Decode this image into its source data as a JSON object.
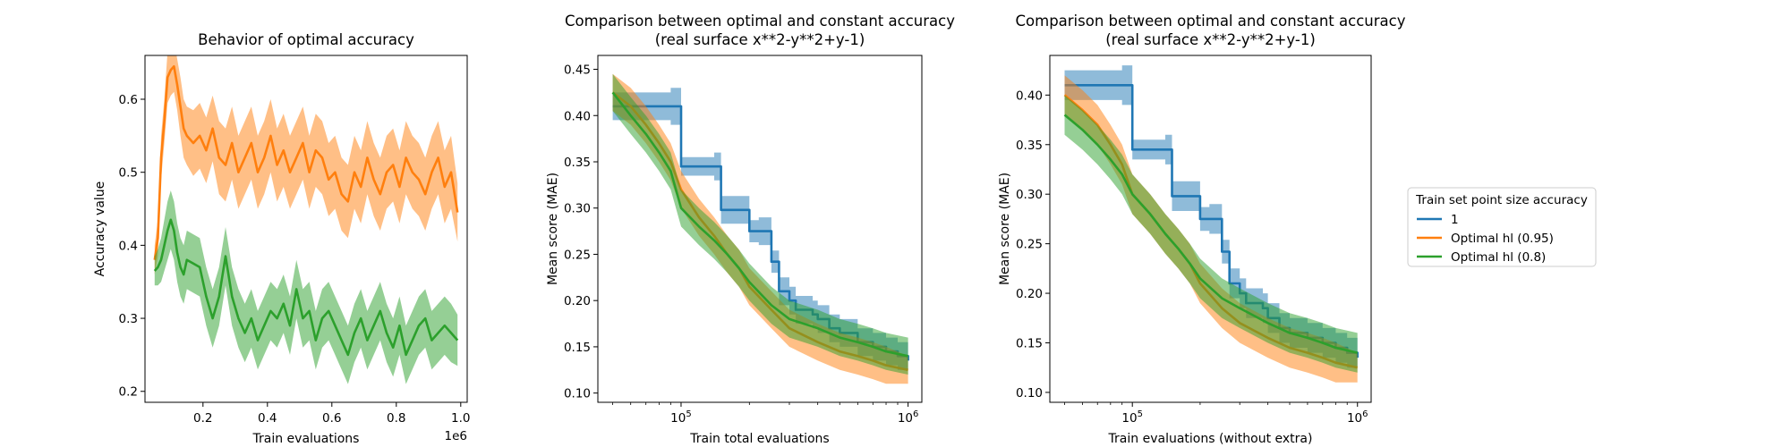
{
  "colors": {
    "blue": "#1f77b4",
    "orange": "#ff7f0e",
    "green": "#2ca02c"
  },
  "legend": {
    "title": "Train set point size accuracy",
    "entries": [
      {
        "label": "1",
        "color": "#1f77b4"
      },
      {
        "label": "Optimal hl (0.95)",
        "color": "#ff7f0e"
      },
      {
        "label": "Optimal hl (0.8)",
        "color": "#2ca02c"
      }
    ]
  },
  "chart_data": [
    {
      "type": "line",
      "title": "Behavior of optimal accuracy",
      "subtitle": "",
      "xlabel": "Train evaluations",
      "ylabel": "Accuracy value",
      "x_offset_text": "1e6",
      "xscale": "linear",
      "xlim": [
        0.02,
        1.02
      ],
      "ylim": [
        0.185,
        0.66
      ],
      "xticks": [
        0.2,
        0.4,
        0.6,
        0.8,
        1.0
      ],
      "xtick_labels": [
        "0.2",
        "0.4",
        "0.6",
        "0.8",
        "1.0"
      ],
      "yticks": [
        0.2,
        0.3,
        0.4,
        0.5,
        0.6
      ],
      "ytick_labels": [
        "0.2",
        "0.3",
        "0.4",
        "0.5",
        "0.6"
      ],
      "grid": false,
      "band_units": "absolute",
      "series": [
        {
          "color": "#ff7f0e",
          "x": [
            0.05,
            0.06,
            0.07,
            0.08,
            0.09,
            0.1,
            0.11,
            0.12,
            0.13,
            0.14,
            0.15,
            0.17,
            0.19,
            0.21,
            0.23,
            0.25,
            0.27,
            0.29,
            0.31,
            0.33,
            0.35,
            0.37,
            0.39,
            0.41,
            0.43,
            0.45,
            0.47,
            0.49,
            0.51,
            0.53,
            0.55,
            0.57,
            0.59,
            0.61,
            0.63,
            0.65,
            0.67,
            0.69,
            0.71,
            0.73,
            0.75,
            0.77,
            0.79,
            0.81,
            0.83,
            0.85,
            0.87,
            0.89,
            0.91,
            0.93,
            0.95,
            0.97,
            0.99
          ],
          "y": [
            0.38,
            0.41,
            0.52,
            0.57,
            0.63,
            0.64,
            0.645,
            0.62,
            0.59,
            0.56,
            0.55,
            0.54,
            0.55,
            0.53,
            0.56,
            0.52,
            0.51,
            0.54,
            0.5,
            0.52,
            0.54,
            0.5,
            0.52,
            0.55,
            0.51,
            0.53,
            0.5,
            0.52,
            0.54,
            0.5,
            0.53,
            0.52,
            0.49,
            0.5,
            0.47,
            0.46,
            0.5,
            0.48,
            0.52,
            0.49,
            0.47,
            0.5,
            0.51,
            0.48,
            0.52,
            0.5,
            0.49,
            0.47,
            0.5,
            0.52,
            0.48,
            0.5,
            0.445
          ],
          "band": [
            0.02,
            0.025,
            0.03,
            0.03,
            0.035,
            0.035,
            0.035,
            0.035,
            0.04,
            0.04,
            0.04,
            0.045,
            0.045,
            0.045,
            0.045,
            0.05,
            0.05,
            0.05,
            0.05,
            0.05,
            0.05,
            0.05,
            0.05,
            0.05,
            0.05,
            0.05,
            0.05,
            0.05,
            0.05,
            0.05,
            0.05,
            0.05,
            0.05,
            0.05,
            0.05,
            0.05,
            0.05,
            0.05,
            0.05,
            0.05,
            0.05,
            0.05,
            0.05,
            0.05,
            0.05,
            0.05,
            0.05,
            0.05,
            0.05,
            0.05,
            0.05,
            0.05,
            0.04
          ]
        },
        {
          "color": "#2ca02c",
          "x": [
            0.05,
            0.06,
            0.07,
            0.08,
            0.09,
            0.1,
            0.11,
            0.12,
            0.13,
            0.14,
            0.15,
            0.17,
            0.19,
            0.21,
            0.23,
            0.25,
            0.27,
            0.29,
            0.31,
            0.33,
            0.35,
            0.37,
            0.39,
            0.41,
            0.43,
            0.45,
            0.47,
            0.49,
            0.51,
            0.53,
            0.55,
            0.57,
            0.59,
            0.61,
            0.63,
            0.65,
            0.67,
            0.69,
            0.71,
            0.73,
            0.75,
            0.77,
            0.79,
            0.81,
            0.83,
            0.85,
            0.87,
            0.89,
            0.91,
            0.93,
            0.95,
            0.97,
            0.99
          ],
          "y": [
            0.365,
            0.37,
            0.38,
            0.4,
            0.42,
            0.435,
            0.42,
            0.39,
            0.37,
            0.36,
            0.38,
            0.375,
            0.37,
            0.33,
            0.3,
            0.33,
            0.385,
            0.33,
            0.3,
            0.28,
            0.3,
            0.27,
            0.29,
            0.31,
            0.3,
            0.32,
            0.29,
            0.34,
            0.3,
            0.31,
            0.27,
            0.3,
            0.31,
            0.29,
            0.27,
            0.25,
            0.28,
            0.3,
            0.27,
            0.29,
            0.31,
            0.28,
            0.26,
            0.29,
            0.25,
            0.27,
            0.29,
            0.3,
            0.27,
            0.28,
            0.29,
            0.28,
            0.27
          ],
          "band": [
            0.02,
            0.025,
            0.03,
            0.035,
            0.04,
            0.04,
            0.04,
            0.04,
            0.04,
            0.04,
            0.04,
            0.04,
            0.04,
            0.04,
            0.04,
            0.04,
            0.04,
            0.04,
            0.04,
            0.04,
            0.04,
            0.04,
            0.04,
            0.04,
            0.04,
            0.04,
            0.04,
            0.04,
            0.04,
            0.04,
            0.04,
            0.04,
            0.04,
            0.04,
            0.04,
            0.04,
            0.04,
            0.04,
            0.04,
            0.04,
            0.04,
            0.04,
            0.04,
            0.04,
            0.04,
            0.04,
            0.04,
            0.04,
            0.04,
            0.04,
            0.04,
            0.04,
            0.035
          ]
        }
      ]
    },
    {
      "type": "line",
      "title": "Comparison between optimal and constant accuracy",
      "subtitle": "(real surface x**2-y**2+y-1)",
      "xlabel": "Train total evaluations",
      "ylabel": "Mean score (MAE)",
      "x_offset_text": "",
      "xscale": "log",
      "xlim": [
        43000,
        1150000
      ],
      "ylim": [
        0.09,
        0.465
      ],
      "xticks": [
        100000,
        1000000
      ],
      "xtick_labels": [
        "10^5",
        "10^6"
      ],
      "yticks": [
        0.1,
        0.15,
        0.2,
        0.25,
        0.3,
        0.35,
        0.4,
        0.45
      ],
      "ytick_labels": [
        "0.10",
        "0.15",
        "0.20",
        "0.25",
        "0.30",
        "0.35",
        "0.40",
        "0.45"
      ],
      "grid": false,
      "band_units": "absolute",
      "series": [
        {
          "color": "#1f77b4",
          "step": true,
          "x": [
            50000,
            70000,
            90000,
            100000,
            120000,
            140000,
            150000,
            180000,
            200000,
            220000,
            250000,
            270000,
            300000,
            320000,
            380000,
            400000,
            450000,
            500000,
            600000,
            700000,
            800000,
            900000,
            1000000
          ],
          "y": [
            0.41,
            0.41,
            0.41,
            0.345,
            0.345,
            0.345,
            0.298,
            0.298,
            0.275,
            0.275,
            0.242,
            0.21,
            0.2,
            0.19,
            0.185,
            0.18,
            0.17,
            0.165,
            0.155,
            0.15,
            0.145,
            0.14,
            0.135
          ],
          "band": [
            0.015,
            0.015,
            0.02,
            0.01,
            0.01,
            0.015,
            0.015,
            0.015,
            0.012,
            0.015,
            0.012,
            0.015,
            0.015,
            0.015,
            0.015,
            0.015,
            0.015,
            0.015,
            0.015,
            0.015,
            0.015,
            0.015,
            0.015
          ]
        },
        {
          "color": "#ff7f0e",
          "x": [
            50000,
            60000,
            70000,
            80000,
            90000,
            100000,
            120000,
            140000,
            160000,
            180000,
            200000,
            250000,
            300000,
            400000,
            500000,
            600000,
            700000,
            800000,
            1000000
          ],
          "y": [
            0.425,
            0.41,
            0.39,
            0.37,
            0.35,
            0.32,
            0.29,
            0.27,
            0.25,
            0.235,
            0.215,
            0.19,
            0.17,
            0.155,
            0.145,
            0.14,
            0.135,
            0.13,
            0.125
          ],
          "band": [
            0.02,
            0.02,
            0.02,
            0.02,
            0.02,
            0.02,
            0.02,
            0.02,
            0.02,
            0.02,
            0.02,
            0.02,
            0.02,
            0.02,
            0.02,
            0.02,
            0.02,
            0.02,
            0.015
          ]
        },
        {
          "color": "#2ca02c",
          "x": [
            50000,
            60000,
            70000,
            80000,
            90000,
            100000,
            120000,
            140000,
            160000,
            180000,
            200000,
            250000,
            300000,
            400000,
            500000,
            600000,
            700000,
            800000,
            1000000
          ],
          "y": [
            0.425,
            0.4,
            0.38,
            0.36,
            0.34,
            0.3,
            0.28,
            0.265,
            0.25,
            0.235,
            0.22,
            0.195,
            0.18,
            0.17,
            0.16,
            0.155,
            0.15,
            0.145,
            0.14
          ],
          "band": [
            0.02,
            0.02,
            0.02,
            0.02,
            0.02,
            0.02,
            0.02,
            0.02,
            0.02,
            0.02,
            0.02,
            0.02,
            0.02,
            0.02,
            0.02,
            0.02,
            0.02,
            0.02,
            0.02
          ]
        }
      ]
    },
    {
      "type": "line",
      "title": "Comparison between optimal and constant accuracy",
      "subtitle": "(real surface x**2-y**2+y-1)",
      "xlabel": "Train evaluations (without extra)",
      "ylabel": "Mean score (MAE)",
      "x_offset_text": "",
      "xscale": "log",
      "xlim": [
        43000,
        1150000
      ],
      "ylim": [
        0.09,
        0.44
      ],
      "xticks": [
        100000,
        1000000
      ],
      "xtick_labels": [
        "10^5",
        "10^6"
      ],
      "yticks": [
        0.1,
        0.15,
        0.2,
        0.25,
        0.3,
        0.35,
        0.4
      ],
      "ytick_labels": [
        "0.10",
        "0.15",
        "0.20",
        "0.25",
        "0.30",
        "0.35",
        "0.40"
      ],
      "grid": false,
      "band_units": "absolute",
      "series": [
        {
          "color": "#1f77b4",
          "step": true,
          "x": [
            50000,
            70000,
            90000,
            100000,
            120000,
            140000,
            150000,
            180000,
            200000,
            220000,
            250000,
            270000,
            300000,
            320000,
            380000,
            400000,
            450000,
            500000,
            600000,
            700000,
            800000,
            900000,
            1000000
          ],
          "y": [
            0.41,
            0.41,
            0.41,
            0.345,
            0.345,
            0.345,
            0.298,
            0.298,
            0.275,
            0.275,
            0.242,
            0.21,
            0.2,
            0.19,
            0.185,
            0.175,
            0.165,
            0.16,
            0.155,
            0.15,
            0.145,
            0.14,
            0.135
          ],
          "band": [
            0.015,
            0.015,
            0.02,
            0.01,
            0.01,
            0.015,
            0.015,
            0.015,
            0.012,
            0.015,
            0.012,
            0.015,
            0.015,
            0.015,
            0.015,
            0.015,
            0.015,
            0.015,
            0.015,
            0.015,
            0.015,
            0.015,
            0.015
          ]
        },
        {
          "color": "#ff7f0e",
          "x": [
            50000,
            60000,
            70000,
            80000,
            90000,
            100000,
            120000,
            140000,
            160000,
            180000,
            200000,
            250000,
            300000,
            400000,
            500000,
            600000,
            700000,
            800000,
            1000000
          ],
          "y": [
            0.4,
            0.385,
            0.37,
            0.35,
            0.33,
            0.3,
            0.28,
            0.26,
            0.245,
            0.23,
            0.21,
            0.185,
            0.17,
            0.155,
            0.145,
            0.14,
            0.135,
            0.13,
            0.125
          ],
          "band": [
            0.02,
            0.02,
            0.02,
            0.02,
            0.02,
            0.02,
            0.02,
            0.02,
            0.02,
            0.02,
            0.02,
            0.02,
            0.02,
            0.02,
            0.02,
            0.02,
            0.02,
            0.02,
            0.015
          ]
        },
        {
          "color": "#2ca02c",
          "x": [
            50000,
            60000,
            70000,
            80000,
            90000,
            100000,
            120000,
            140000,
            160000,
            180000,
            200000,
            250000,
            300000,
            400000,
            500000,
            600000,
            700000,
            800000,
            1000000
          ],
          "y": [
            0.38,
            0.365,
            0.35,
            0.335,
            0.32,
            0.3,
            0.28,
            0.26,
            0.245,
            0.23,
            0.215,
            0.195,
            0.185,
            0.17,
            0.16,
            0.155,
            0.15,
            0.145,
            0.14
          ],
          "band": [
            0.02,
            0.02,
            0.02,
            0.02,
            0.02,
            0.02,
            0.02,
            0.02,
            0.02,
            0.02,
            0.02,
            0.02,
            0.02,
            0.02,
            0.02,
            0.02,
            0.02,
            0.02,
            0.02
          ]
        }
      ]
    }
  ]
}
